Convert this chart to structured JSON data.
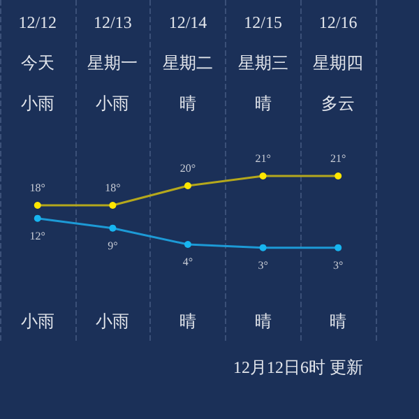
{
  "chart_data": {
    "type": "line",
    "categories": [
      "12/12",
      "12/13",
      "12/14",
      "12/15",
      "12/16"
    ],
    "series": [
      {
        "color": "#b5a81c",
        "values": [
          18,
          18,
          20,
          21,
          21
        ],
        "value_labels": [
          "18°",
          "18°",
          "20°",
          "21°",
          "21°"
        ]
      },
      {
        "color": "#1d9ad6",
        "values": [
          12,
          9,
          4,
          3,
          3
        ],
        "value_labels": [
          "12°",
          "9°",
          "4°",
          "3°",
          "3°"
        ],
        "axis": "y2"
      }
    ],
    "ylim": [
      4,
      39
    ],
    "y2lim": [
      -26,
      79
    ],
    "tick_labels": "x",
    "grid": "x",
    "marker": "circle",
    "line_style": "solid",
    "annotations": [
      "今天",
      "星期一",
      "星期二",
      "星期三",
      "星期四",
      "小雨",
      "小雨",
      "晴",
      "晴",
      "多云",
      "小雨",
      "小雨",
      "晴",
      "晴",
      "晴",
      "12月12日6时 更新"
    ]
  }
}
